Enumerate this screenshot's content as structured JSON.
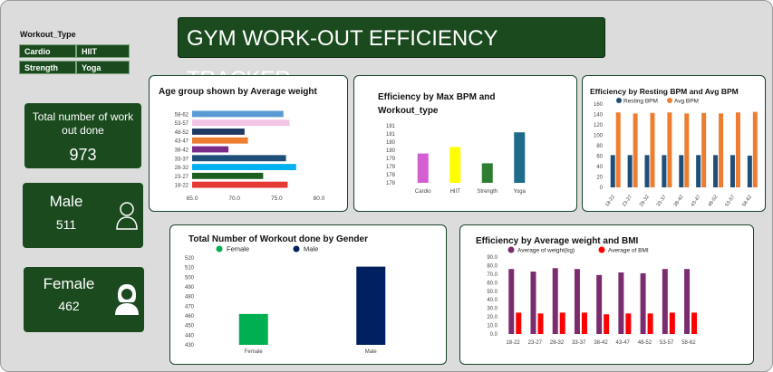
{
  "title": "GYM WORK-OUT EFFICIENCY TRACKER",
  "slicer": {
    "title": "Workout_Type",
    "items": [
      "Cardio",
      "HIIT",
      "Strength",
      "Yoga"
    ]
  },
  "kpis": {
    "total": {
      "label": "Total number of work out done",
      "value": "973"
    },
    "male": {
      "label": "Male",
      "value": "511",
      "icon": "male-person-icon"
    },
    "female": {
      "label": "Female",
      "value": "462",
      "icon": "female-person-icon"
    }
  },
  "colors": {
    "dark_green": "#1a4a1e",
    "background": "#dcdcdc"
  },
  "chart_data": [
    {
      "id": "age-weight",
      "type": "bar",
      "orientation": "horizontal",
      "title": "Age group shown by Average weight",
      "categories": [
        "58-62",
        "53-57",
        "48-52",
        "43-47",
        "38-42",
        "33-37",
        "28-32",
        "23-27",
        "18-22"
      ],
      "values": [
        75.8,
        76.5,
        71.2,
        71.6,
        69.3,
        76.1,
        77.3,
        73.4,
        76.3
      ],
      "bar_colors": [
        "#5a9bd5",
        "#f2c4e6",
        "#1f3864",
        "#ed7d31",
        "#7b2c8a",
        "#1f4e79",
        "#00b0f0",
        "#1b5e20",
        "#e53935"
      ],
      "xlim": [
        65,
        80
      ],
      "xticks": [
        "65.0",
        "70.0",
        "75.0",
        "80.0"
      ]
    },
    {
      "id": "max-bpm",
      "type": "bar",
      "title": "Efficiency by Max BPM and Workout_type",
      "categories": [
        "Cardio",
        "HIIT",
        "Strength",
        "Yoga"
      ],
      "values": [
        179.8,
        180.2,
        179.2,
        181.1
      ],
      "bar_colors": [
        "#d35fd3",
        "#ffff00",
        "#2e7d32",
        "#1f6b8a"
      ],
      "ylim": [
        178,
        181.5
      ],
      "yticks": [
        "178",
        "178",
        "179",
        "179",
        "180",
        "180",
        "181",
        "181"
      ]
    },
    {
      "id": "resting-avg-bpm",
      "type": "bar",
      "title": "Efficiency by Resting BPM and Avg BPM",
      "categories": [
        "18-22",
        "23-27",
        "28-32",
        "33-37",
        "38-42",
        "43-47",
        "48-52",
        "53-57",
        "58-62"
      ],
      "series": [
        {
          "name": "Resting BPM",
          "color": "#1f4e79",
          "values": [
            62,
            62,
            62,
            62,
            62,
            62,
            62,
            62,
            61
          ]
        },
        {
          "name": "Avg BPM",
          "color": "#ed7d31",
          "values": [
            144,
            142,
            143,
            144,
            142,
            143,
            142,
            144,
            145
          ]
        }
      ],
      "ylim": [
        0,
        160
      ],
      "yticks": [
        "0",
        "20",
        "40",
        "60",
        "80",
        "100",
        "120",
        "140",
        "160"
      ]
    },
    {
      "id": "gender-workouts",
      "type": "bar",
      "title": "Total Number of Workout done by Gender",
      "categories": [
        "Female",
        "Male"
      ],
      "values": [
        462,
        511
      ],
      "series_names": [
        "Female",
        "Male"
      ],
      "bar_colors": [
        "#00b050",
        "#002060"
      ],
      "ylim": [
        430,
        520
      ],
      "yticks": [
        "430",
        "440",
        "450",
        "460",
        "470",
        "480",
        "490",
        "500",
        "510",
        "520"
      ]
    },
    {
      "id": "weight-bmi",
      "type": "bar",
      "title": "Efficiency by Average weight and BMI",
      "categories": [
        "18-22",
        "23-27",
        "28-32",
        "33-37",
        "38-42",
        "43-47",
        "48-52",
        "53-57",
        "58-62"
      ],
      "series": [
        {
          "name": "Average of weight(kg)",
          "color": "#7b2c6e",
          "values": [
            76,
            73,
            77,
            76,
            69,
            72,
            71,
            76,
            76
          ]
        },
        {
          "name": "Average of BMI",
          "color": "#ff0000",
          "values": [
            25,
            24,
            25,
            25,
            23,
            24,
            24,
            25,
            25
          ]
        }
      ],
      "ylim": [
        0,
        90
      ],
      "yticks": [
        "0.0",
        "10.0",
        "20.0",
        "30.0",
        "40.0",
        "50.0",
        "60.0",
        "70.0",
        "80.0",
        "90.0"
      ]
    }
  ]
}
